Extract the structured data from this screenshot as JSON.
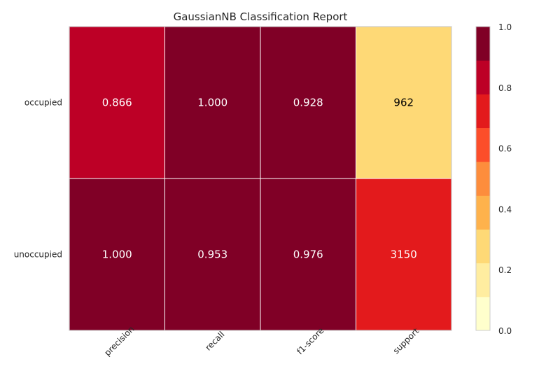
{
  "chart_data": {
    "type": "heatmap",
    "title": "GaussianNB Classification Report",
    "columns": [
      "precision",
      "recall",
      "f1-score",
      "support"
    ],
    "rows": [
      "occupied",
      "unoccupied"
    ],
    "cells": [
      {
        "row": "occupied",
        "values": [
          "0.866",
          "1.000",
          "0.928",
          "962"
        ],
        "color_levels": [
          0.866,
          1.0,
          0.928,
          0.305
        ]
      },
      {
        "row": "unoccupied",
        "values": [
          "1.000",
          "0.953",
          "0.976",
          "3150"
        ],
        "color_levels": [
          1.0,
          0.953,
          0.976,
          0.75
        ]
      }
    ],
    "colorbar": {
      "range": [
        0.0,
        1.0
      ],
      "ticks": [
        "0.0",
        "0.2",
        "0.4",
        "0.6",
        "0.8",
        "1.0"
      ],
      "bins": [
        {
          "from": 0.0,
          "to": 0.111,
          "color": "#ffffcc"
        },
        {
          "from": 0.111,
          "to": 0.222,
          "color": "#ffeda0"
        },
        {
          "from": 0.222,
          "to": 0.333,
          "color": "#fed976"
        },
        {
          "from": 0.333,
          "to": 0.444,
          "color": "#feb24c"
        },
        {
          "from": 0.444,
          "to": 0.556,
          "color": "#fd8d3c"
        },
        {
          "from": 0.556,
          "to": 0.667,
          "color": "#fc4e2a"
        },
        {
          "from": 0.667,
          "to": 0.778,
          "color": "#e31a1c"
        },
        {
          "from": 0.778,
          "to": 0.889,
          "color": "#bd0026"
        },
        {
          "from": 0.889,
          "to": 1.0,
          "color": "#800026"
        }
      ]
    }
  }
}
